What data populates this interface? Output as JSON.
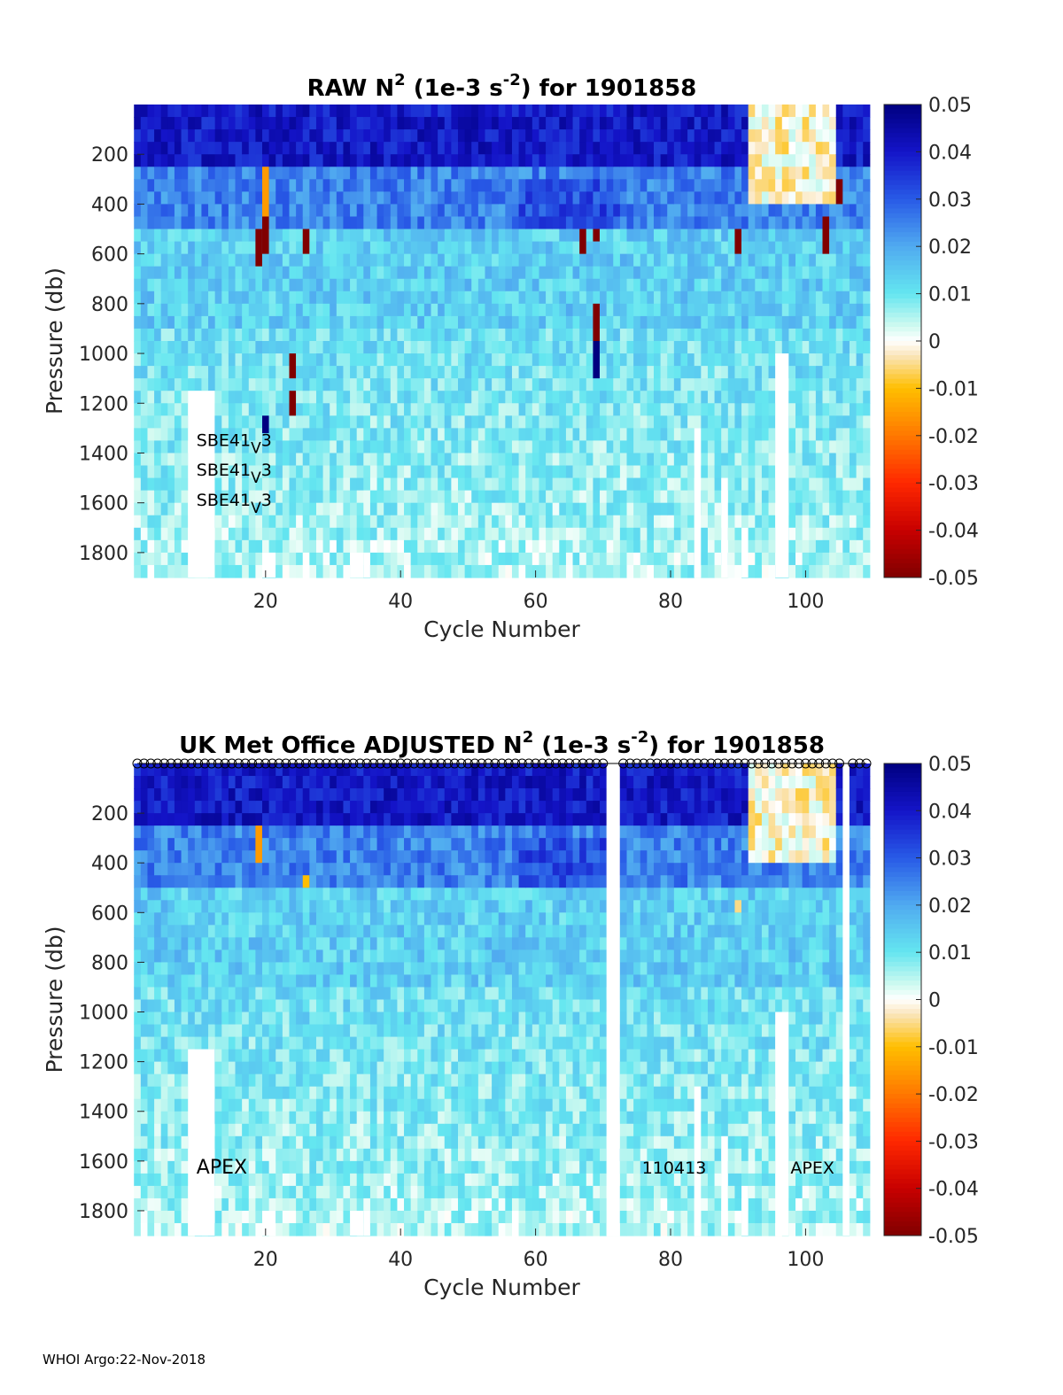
{
  "footer": "WHOI Argo:22-Nov-2018",
  "chart_data": [
    {
      "type": "heatmap",
      "panel": "raw",
      "title_parts": {
        "lead": "RAW N",
        "sup1": "2",
        "mid": " (1e-3 s",
        "sup2": "-2",
        "tail": ") for 1901858"
      },
      "xlabel": "Cycle Number",
      "ylabel": "Pressure (db)",
      "xlim": [
        1,
        109
      ],
      "ylim": [
        0,
        1900
      ],
      "xticks": [
        "20",
        "40",
        "60",
        "80",
        "100"
      ],
      "xtick_values": [
        20,
        40,
        60,
        80,
        100
      ],
      "yticks": [
        "200",
        "400",
        "600",
        "800",
        "1000",
        "1200",
        "1400",
        "1600",
        "1800"
      ],
      "ytick_values": [
        200,
        400,
        600,
        800,
        1000,
        1200,
        1400,
        1600,
        1800
      ],
      "colorbar": {
        "min": -0.05,
        "max": 0.05,
        "ticks": [
          "0.05",
          "0.04",
          "0.03",
          "0.02",
          "0.01",
          "0",
          "-0.01",
          "-0.02",
          "-0.03",
          "-0.04",
          "-0.05"
        ]
      },
      "annotations": [
        "SBE41",
        "V",
        "3",
        "SBE41",
        "V",
        "3",
        "SBE41",
        "V",
        "3"
      ],
      "annotation_cycle": 10,
      "annotation_pressures": [
        1400,
        1520,
        1640
      ],
      "deep_value": 0.005,
      "surface_value": 0.04,
      "anomalies": [
        {
          "cycle": 19,
          "p0": 500,
          "p1": 650,
          "value": -0.05
        },
        {
          "cycle": 20,
          "p0": 250,
          "p1": 450,
          "value": -0.015
        },
        {
          "cycle": 20,
          "p0": 450,
          "p1": 600,
          "value": -0.05
        },
        {
          "cycle": 20,
          "p0": 1250,
          "p1": 1320,
          "value": 0.05
        },
        {
          "cycle": 24,
          "p0": 1000,
          "p1": 1100,
          "value": -0.05
        },
        {
          "cycle": 24,
          "p0": 1150,
          "p1": 1250,
          "value": -0.05
        },
        {
          "cycle": 26,
          "p0": 500,
          "p1": 600,
          "value": -0.05
        },
        {
          "cycle": 67,
          "p0": 500,
          "p1": 600,
          "value": -0.05
        },
        {
          "cycle": 69,
          "p0": 500,
          "p1": 550,
          "value": -0.05
        },
        {
          "cycle": 69,
          "p0": 800,
          "p1": 950,
          "value": -0.05
        },
        {
          "cycle": 69,
          "p0": 950,
          "p1": 1100,
          "value": 0.05
        },
        {
          "cycle": 90,
          "p0": 500,
          "p1": 600,
          "value": -0.05
        },
        {
          "cycle": 103,
          "p0": 450,
          "p1": 600,
          "value": -0.05
        },
        {
          "cycle": 105,
          "p0": 300,
          "p1": 400,
          "value": -0.05
        }
      ],
      "missing": [
        {
          "c0": 9,
          "c1": 12,
          "p0": 1150,
          "p1": 1900
        },
        {
          "c0": 20,
          "c1": 21,
          "p0": 1800,
          "p1": 1900
        },
        {
          "c0": 33,
          "c1": 34,
          "p0": 1800,
          "p1": 1900
        },
        {
          "c0": 35,
          "c1": 35,
          "p0": 1800,
          "p1": 1900
        },
        {
          "c0": 84,
          "c1": 84,
          "p0": 1300,
          "p1": 1900
        },
        {
          "c0": 88,
          "c1": 88,
          "p0": 1500,
          "p1": 1900
        },
        {
          "c0": 91,
          "c1": 91,
          "p0": 1700,
          "p1": 1900
        },
        {
          "c0": 96,
          "c1": 97,
          "p0": 1000,
          "p1": 1900
        }
      ]
    },
    {
      "type": "heatmap",
      "panel": "adjusted",
      "title_parts": {
        "lead": "UK Met Office  ADJUSTED N",
        "sup1": "2",
        "mid": " (1e-3 s",
        "sup2": "-2",
        "tail": ") for 1901858"
      },
      "xlabel": "Cycle Number",
      "ylabel": "Pressure (db)",
      "xlim": [
        1,
        109
      ],
      "ylim": [
        0,
        1900
      ],
      "xticks": [
        "20",
        "40",
        "60",
        "80",
        "100"
      ],
      "xtick_values": [
        20,
        40,
        60,
        80,
        100
      ],
      "yticks": [
        "200",
        "400",
        "600",
        "800",
        "1000",
        "1200",
        "1400",
        "1600",
        "1800"
      ],
      "ytick_values": [
        200,
        400,
        600,
        800,
        1000,
        1200,
        1400,
        1600,
        1800
      ],
      "colorbar": {
        "min": -0.05,
        "max": 0.05,
        "ticks": [
          "0.05",
          "0.04",
          "0.03",
          "0.02",
          "0.01",
          "0",
          "-0.01",
          "-0.02",
          "-0.03",
          "-0.04",
          "-0.05"
        ]
      },
      "annotations": [
        "APEX",
        "110413",
        "APEX"
      ],
      "annotation_cycles": [
        10,
        76,
        98
      ],
      "annotation_pressure": 1700,
      "deep_value": 0.005,
      "surface_value": 0.04,
      "marker_cycles_missing": [
        71,
        72,
        106
      ],
      "anomalies": [
        {
          "cycle": 19,
          "p0": 250,
          "p1": 400,
          "value": -0.015
        },
        {
          "cycle": 26,
          "p0": 450,
          "p1": 500,
          "value": -0.01
        },
        {
          "cycle": 90,
          "p0": 550,
          "p1": 600,
          "value": -0.005
        }
      ],
      "missing": [
        {
          "c0": 9,
          "c1": 12,
          "p0": 1150,
          "p1": 1900
        },
        {
          "c0": 20,
          "c1": 21,
          "p0": 1800,
          "p1": 1900
        },
        {
          "c0": 33,
          "c1": 34,
          "p0": 1800,
          "p1": 1900
        },
        {
          "c0": 35,
          "c1": 35,
          "p0": 1800,
          "p1": 1900
        },
        {
          "c0": 71,
          "c1": 72,
          "p0": 0,
          "p1": 1900
        },
        {
          "c0": 84,
          "c1": 84,
          "p0": 1300,
          "p1": 1900
        },
        {
          "c0": 88,
          "c1": 88,
          "p0": 1500,
          "p1": 1900
        },
        {
          "c0": 91,
          "c1": 91,
          "p0": 1700,
          "p1": 1900
        },
        {
          "c0": 96,
          "c1": 97,
          "p0": 1000,
          "p1": 1900
        },
        {
          "c0": 106,
          "c1": 106,
          "p0": 0,
          "p1": 1900
        }
      ]
    }
  ]
}
